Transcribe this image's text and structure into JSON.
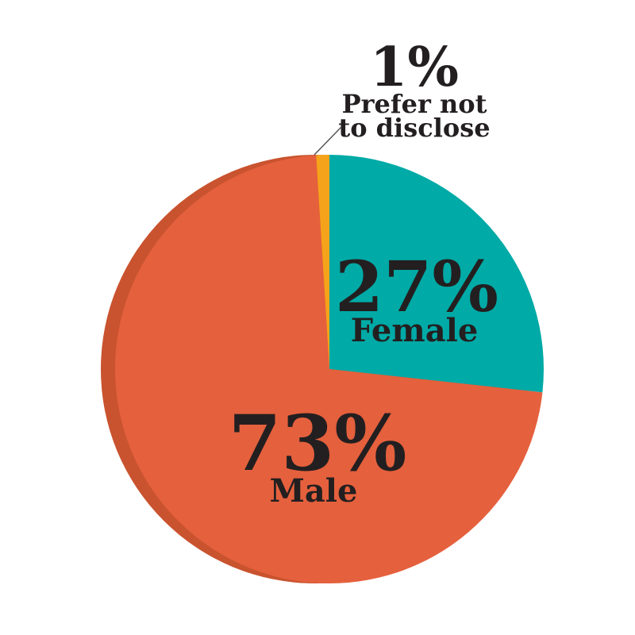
{
  "chart_data": {
    "type": "pie",
    "slices": [
      {
        "label": "Female",
        "value": 27,
        "value_text": "27%",
        "color": "#00aaa6"
      },
      {
        "label": "Male",
        "value": 73,
        "value_text": "73%",
        "color": "#e5603d"
      },
      {
        "label": "Prefer not to disclose",
        "value": 1,
        "value_text": "1%",
        "color": "#f5a31a",
        "label_lines": [
          "Prefer not",
          "to disclose"
        ]
      }
    ],
    "side_color": "#c9532f",
    "legend": "none"
  }
}
